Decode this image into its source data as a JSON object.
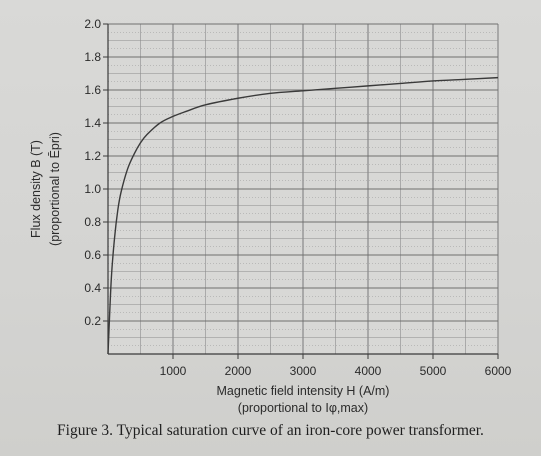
{
  "chart_data": {
    "type": "line",
    "title": "",
    "xlabel": "Magnetic field intensity H (A/m)",
    "xlabel_sub": "(proportional to Iφ,max)",
    "ylabel": "Flux density B (T)",
    "ylabel_sub": "(proportional to Ēpri)",
    "xlim": [
      0,
      6000
    ],
    "ylim": [
      0,
      2.0
    ],
    "x_ticks": [
      "1000",
      "2000",
      "3000",
      "4000",
      "5000",
      "6000"
    ],
    "y_ticks": [
      "0.2",
      "0.4",
      "0.6",
      "0.8",
      "1.0",
      "1.2",
      "1.4",
      "1.6",
      "1.8",
      "2.0"
    ],
    "grid": true,
    "series": [
      {
        "x": [
          0,
          50,
          100,
          150,
          200,
          300,
          400,
          500,
          600,
          800,
          1000,
          1200,
          1500,
          2000,
          2500,
          3000,
          3500,
          4000,
          4500,
          5000,
          5500,
          6000
        ],
        "y": [
          0,
          0.45,
          0.7,
          0.87,
          0.98,
          1.12,
          1.21,
          1.28,
          1.33,
          1.4,
          1.44,
          1.47,
          1.51,
          1.55,
          1.58,
          1.595,
          1.61,
          1.625,
          1.64,
          1.655,
          1.665,
          1.675
        ]
      }
    ]
  },
  "caption": "Figure 3. Typical saturation curve of an iron-core power transformer."
}
